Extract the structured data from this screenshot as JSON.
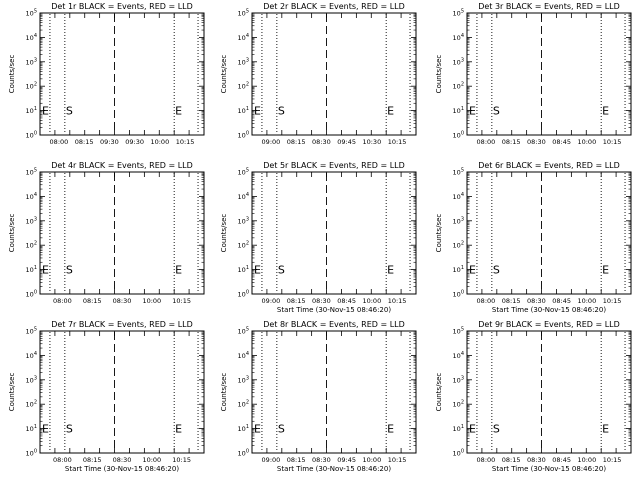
{
  "chart_data": {
    "type": "line",
    "grid": false,
    "shared": {
      "ylabel": "Counts/sec",
      "y_scale": "log",
      "ylim": [
        1,
        100000
      ],
      "y_ticks": [
        {
          "value": 1,
          "base": "10",
          "exp": "0"
        },
        {
          "value": 10,
          "base": "10",
          "exp": "1"
        },
        {
          "value": 100,
          "base": "10",
          "exp": "2"
        },
        {
          "value": 1000,
          "base": "10",
          "exp": "3"
        },
        {
          "value": 10000,
          "base": "10",
          "exp": "4"
        },
        {
          "value": 100000,
          "base": "10",
          "exp": "5"
        }
      ],
      "markers": {
        "start": "S",
        "end": "E"
      }
    },
    "layouts": {
      "left": {
        "xlim": [
          "07:45",
          "10:30"
        ],
        "x_ticks": [
          "08:00",
          "08:15",
          "08:30",
          "08:45",
          "09:00",
          "09:15",
          "09:30",
          "09:45",
          "10:00",
          "10:15"
        ],
        "x_tick_labels": [
          "08:00",
          "08:15",
          "09:30",
          "09:30",
          "10:00",
          "10:15"
        ],
        "vlines": [
          {
            "x": "07:55",
            "style": "dotted"
          },
          {
            "x": "08:10",
            "style": "dotted"
          },
          {
            "x": "09:00",
            "style": "dashed"
          },
          {
            "x": "10:00",
            "style": "dotted"
          },
          {
            "x": "10:24",
            "style": "dotted"
          }
        ],
        "E_markers": [
          "07:47",
          "10:01"
        ],
        "S_marker": "08:11"
      },
      "mid": {
        "xlim": [
          "07:45",
          "10:30"
        ],
        "x_ticks": [
          "08:00",
          "08:15",
          "08:30",
          "08:45",
          "09:00",
          "09:15",
          "09:30",
          "09:45",
          "10:00",
          "10:15"
        ],
        "x_tick_labels": [
          "08:00",
          "08:15",
          "08:30",
          "09:45",
          "10:30",
          "10:15"
        ],
        "vlines": [
          {
            "x": "07:55",
            "style": "dotted"
          },
          {
            "x": "08:10",
            "style": "dotted"
          },
          {
            "x": "09:00",
            "style": "dashed"
          },
          {
            "x": "10:00",
            "style": "dotted"
          },
          {
            "x": "10:24",
            "style": "dotted"
          }
        ],
        "E_markers": [
          "07:47",
          "10:01"
        ],
        "S_marker": "08:11"
      },
      "right": {
        "xlim": [
          "07:45",
          "10:30"
        ],
        "x_ticks": [
          "08:00",
          "08:15",
          "08:30",
          "08:45",
          "09:00",
          "09:15",
          "09:30",
          "09:45",
          "10:00",
          "10:15"
        ],
        "x_tick_labels": [
          "08:00",
          "08:15",
          "08:30",
          "08:45",
          "10:00",
          "10:15"
        ],
        "vlines": [
          {
            "x": "07:55",
            "style": "dotted"
          },
          {
            "x": "08:10",
            "style": "dotted"
          },
          {
            "x": "09:00",
            "style": "dashed"
          },
          {
            "x": "10:00",
            "style": "dotted"
          },
          {
            "x": "10:24",
            "style": "dotted"
          }
        ],
        "E_markers": [
          "07:47",
          "10:01"
        ],
        "S_marker": "08:11"
      }
    },
    "panels": [
      {
        "title": "Det 1r BLACK = Events, RED = LLD",
        "layout": "left",
        "xlabel": "",
        "series": [],
        "x_tick_labels": [
          "08:00",
          "08:15",
          "09:30",
          "09:30",
          "10:00",
          "10:15"
        ]
      },
      {
        "title": "Det 2r BLACK = Events, RED = LLD",
        "layout": "mid",
        "xlabel": "",
        "series": [],
        "x_tick_labels": [
          "09:00",
          "08:15",
          "08:30",
          "09:45",
          "10:30",
          "10:15"
        ]
      },
      {
        "title": "Det 3r BLACK = Events, RED = LLD",
        "layout": "right",
        "xlabel": "",
        "series": [],
        "x_tick_labels": [
          "08:00",
          "08:15",
          "08:30",
          "08:45",
          "10:00",
          "10:15"
        ]
      },
      {
        "title": "Det 4r BLACK = Events, RED = LLD",
        "layout": "left",
        "xlabel": "",
        "series": [],
        "x_tick_labels": [
          "08:00",
          "08:15",
          "08:30",
          "10:00",
          "10:15"
        ]
      },
      {
        "title": "Det 5r BLACK = Events, RED = LLD",
        "layout": "mid",
        "xlabel": "Start Time (30-Nov-15 08:46:20)",
        "series": [],
        "x_tick_labels": [
          "09:00",
          "08:15",
          "08:30",
          "08:45",
          "10:00",
          "10:15"
        ]
      },
      {
        "title": "Det 6r BLACK = Events, RED = LLD",
        "layout": "right",
        "xlabel": "Start Time (30-Nov-15 08:46:20)",
        "series": [],
        "x_tick_labels": [
          "08:00",
          "08:15",
          "08:30",
          "08:45",
          "10:00",
          "10:15"
        ]
      },
      {
        "title": "Det 7r BLACK = Events, RED = LLD",
        "layout": "left",
        "xlabel": "Start Time (30-Nov-15 08:46:20)",
        "series": [],
        "x_tick_labels": [
          "08:00",
          "08:15",
          "08:30",
          "10:00",
          "10:15"
        ]
      },
      {
        "title": "Det 8r BLACK = Events, RED = LLD",
        "layout": "mid",
        "xlabel": "Start Time (30-Nov-15 08:46:20)",
        "series": [],
        "x_tick_labels": [
          "09:00",
          "08:15",
          "08:30",
          "09:45",
          "10:00",
          "10:15"
        ]
      },
      {
        "title": "Det 9r BLACK = Events, RED = LLD",
        "layout": "right",
        "xlabel": "Start Time (30-Nov-15 08:46:20)",
        "series": [],
        "x_tick_labels": [
          "08:00",
          "08:15",
          "08:30",
          "08:45",
          "10:00",
          "10:15"
        ]
      }
    ]
  }
}
